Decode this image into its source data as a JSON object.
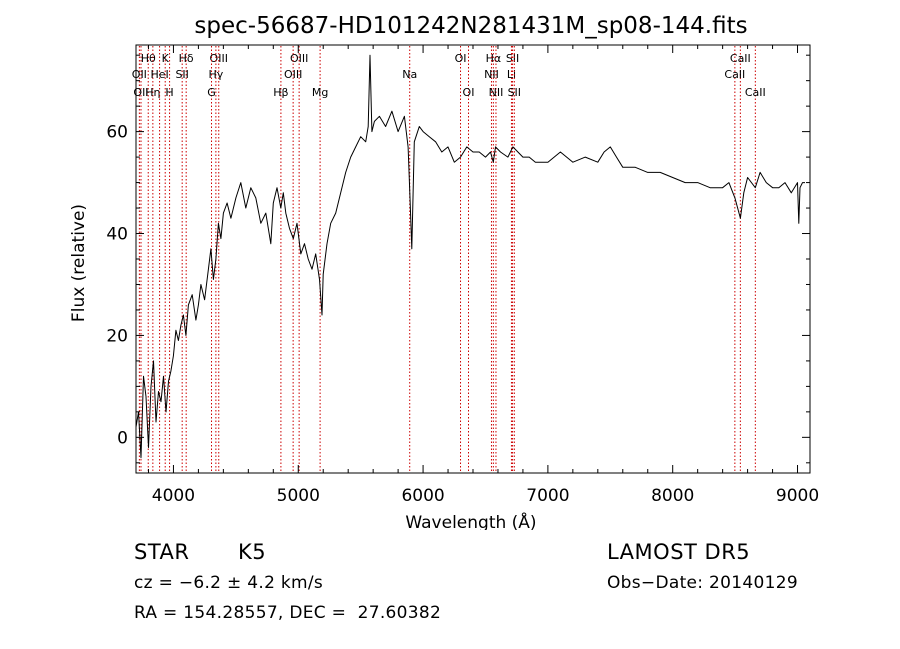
{
  "chart_data": {
    "type": "line",
    "title": "spec-56687-HD101242N281431M_sp08-144.fits",
    "xlabel": "Wavelength (Å)",
    "ylabel": "Flux (relative)",
    "xlim": [
      3700,
      9100
    ],
    "ylim": [
      -7,
      77
    ],
    "xticks": [
      4000,
      5000,
      6000,
      7000,
      8000,
      9000
    ],
    "yticks": [
      0,
      20,
      40,
      60
    ],
    "grid": false,
    "line_color": "#000000",
    "marker_color": "#cc0000",
    "series": [
      {
        "x": [
          3700,
          3720,
          3740,
          3760,
          3780,
          3800,
          3820,
          3840,
          3860,
          3880,
          3900,
          3920,
          3940,
          3960,
          3980,
          4000,
          4020,
          4040,
          4060,
          4080,
          4100,
          4120,
          4150,
          4180,
          4200,
          4220,
          4250,
          4280,
          4300,
          4320,
          4340,
          4360,
          4380,
          4400,
          4430,
          4460,
          4500,
          4540,
          4580,
          4620,
          4660,
          4700,
          4740,
          4780,
          4800,
          4830,
          4860,
          4880,
          4900,
          4930,
          4960,
          4990,
          5020,
          5050,
          5080,
          5110,
          5140,
          5170,
          5190,
          5200,
          5230,
          5260,
          5300,
          5340,
          5380,
          5420,
          5460,
          5500,
          5540,
          5560,
          5575,
          5590,
          5610,
          5650,
          5700,
          5750,
          5800,
          5850,
          5880,
          5895,
          5910,
          5930,
          5970,
          6000,
          6050,
          6100,
          6150,
          6200,
          6250,
          6300,
          6350,
          6400,
          6450,
          6500,
          6540,
          6563,
          6580,
          6620,
          6680,
          6720,
          6760,
          6800,
          6850,
          6900,
          7000,
          7100,
          7200,
          7300,
          7400,
          7450,
          7500,
          7550,
          7600,
          7700,
          7800,
          7900,
          8000,
          8100,
          8200,
          8300,
          8400,
          8450,
          8498,
          8542,
          8570,
          8600,
          8662,
          8700,
          8750,
          8800,
          8850,
          8900,
          8950,
          9000,
          9010,
          9020,
          9040,
          9060
        ],
        "y": [
          2,
          5,
          -4,
          12,
          8,
          -2,
          10,
          15,
          3,
          9,
          7,
          12,
          5,
          11,
          13,
          16,
          21,
          19,
          22,
          24,
          20,
          26,
          28,
          23,
          26,
          30,
          27,
          33,
          37,
          31,
          35,
          42,
          39,
          44,
          46,
          43,
          47,
          50,
          45,
          49,
          47,
          42,
          44,
          38,
          46,
          49,
          45,
          48,
          44,
          41,
          39,
          42,
          36,
          38,
          35,
          33,
          36,
          31,
          24,
          32,
          38,
          42,
          44,
          48,
          52,
          55,
          57,
          59,
          58,
          61,
          75,
          60,
          62,
          63,
          61,
          64,
          60,
          63,
          57,
          47,
          37,
          58,
          61,
          60,
          59,
          58,
          56,
          57,
          54,
          55,
          57,
          56,
          56,
          55,
          56,
          54,
          57,
          56,
          55,
          57,
          56,
          55,
          55,
          54,
          54,
          56,
          54,
          55,
          54,
          56,
          57,
          55,
          53,
          53,
          52,
          52,
          51,
          50,
          50,
          49,
          49,
          50,
          47,
          43,
          48,
          51,
          49,
          52,
          50,
          49,
          49,
          50,
          48,
          50,
          42,
          49,
          50,
          50
        ]
      }
    ],
    "lines": [
      {
        "name": "Hθ",
        "x": 3798,
        "row": 1
      },
      {
        "name": "OII",
        "x": 3727,
        "row": 2
      },
      {
        "name": "OII",
        "x": 3740,
        "row": 3
      },
      {
        "name": "Hη",
        "x": 3835,
        "row": 3
      },
      {
        "name": "HeI",
        "x": 3889,
        "row": 2
      },
      {
        "name": "K",
        "x": 3934,
        "row": 1
      },
      {
        "name": "H",
        "x": 3969,
        "row": 3
      },
      {
        "name": "Hδ",
        "x": 4102,
        "row": 1
      },
      {
        "name": "SII",
        "x": 4070,
        "row": 2
      },
      {
        "name": "OIII",
        "x": 4363,
        "row": 1
      },
      {
        "name": "Hγ",
        "x": 4340,
        "row": 2
      },
      {
        "name": "G",
        "x": 4305,
        "row": 3
      },
      {
        "name": "OIII",
        "x": 5007,
        "row": 1
      },
      {
        "name": "OIII",
        "x": 4959,
        "row": 2
      },
      {
        "name": "Hβ",
        "x": 4861,
        "row": 3
      },
      {
        "name": "Mg",
        "x": 5175,
        "row": 3
      },
      {
        "name": "Na",
        "x": 5893,
        "row": 2
      },
      {
        "name": "OI",
        "x": 6300,
        "row": 1
      },
      {
        "name": "OI",
        "x": 6364,
        "row": 3
      },
      {
        "name": "Hα",
        "x": 6563,
        "row": 1
      },
      {
        "name": "NII",
        "x": 6548,
        "row": 2
      },
      {
        "name": "NII",
        "x": 6584,
        "row": 3
      },
      {
        "name": "SII",
        "x": 6717,
        "row": 1
      },
      {
        "name": "Li",
        "x": 6708,
        "row": 2
      },
      {
        "name": "SII",
        "x": 6731,
        "row": 3
      },
      {
        "name": "CaII",
        "x": 8542,
        "row": 1
      },
      {
        "name": "CaII",
        "x": 8498,
        "row": 2
      },
      {
        "name": "CaII",
        "x": 8662,
        "row": 3
      }
    ]
  },
  "info": {
    "object_class": "STAR",
    "subclass": "K5",
    "survey": "LAMOST DR5",
    "redshift": "cz = −6.2 ± 4.2 km/s",
    "obs_date": "Obs−Date: 20140129",
    "coords": "RA = 154.28557, DEC =  27.60382"
  }
}
